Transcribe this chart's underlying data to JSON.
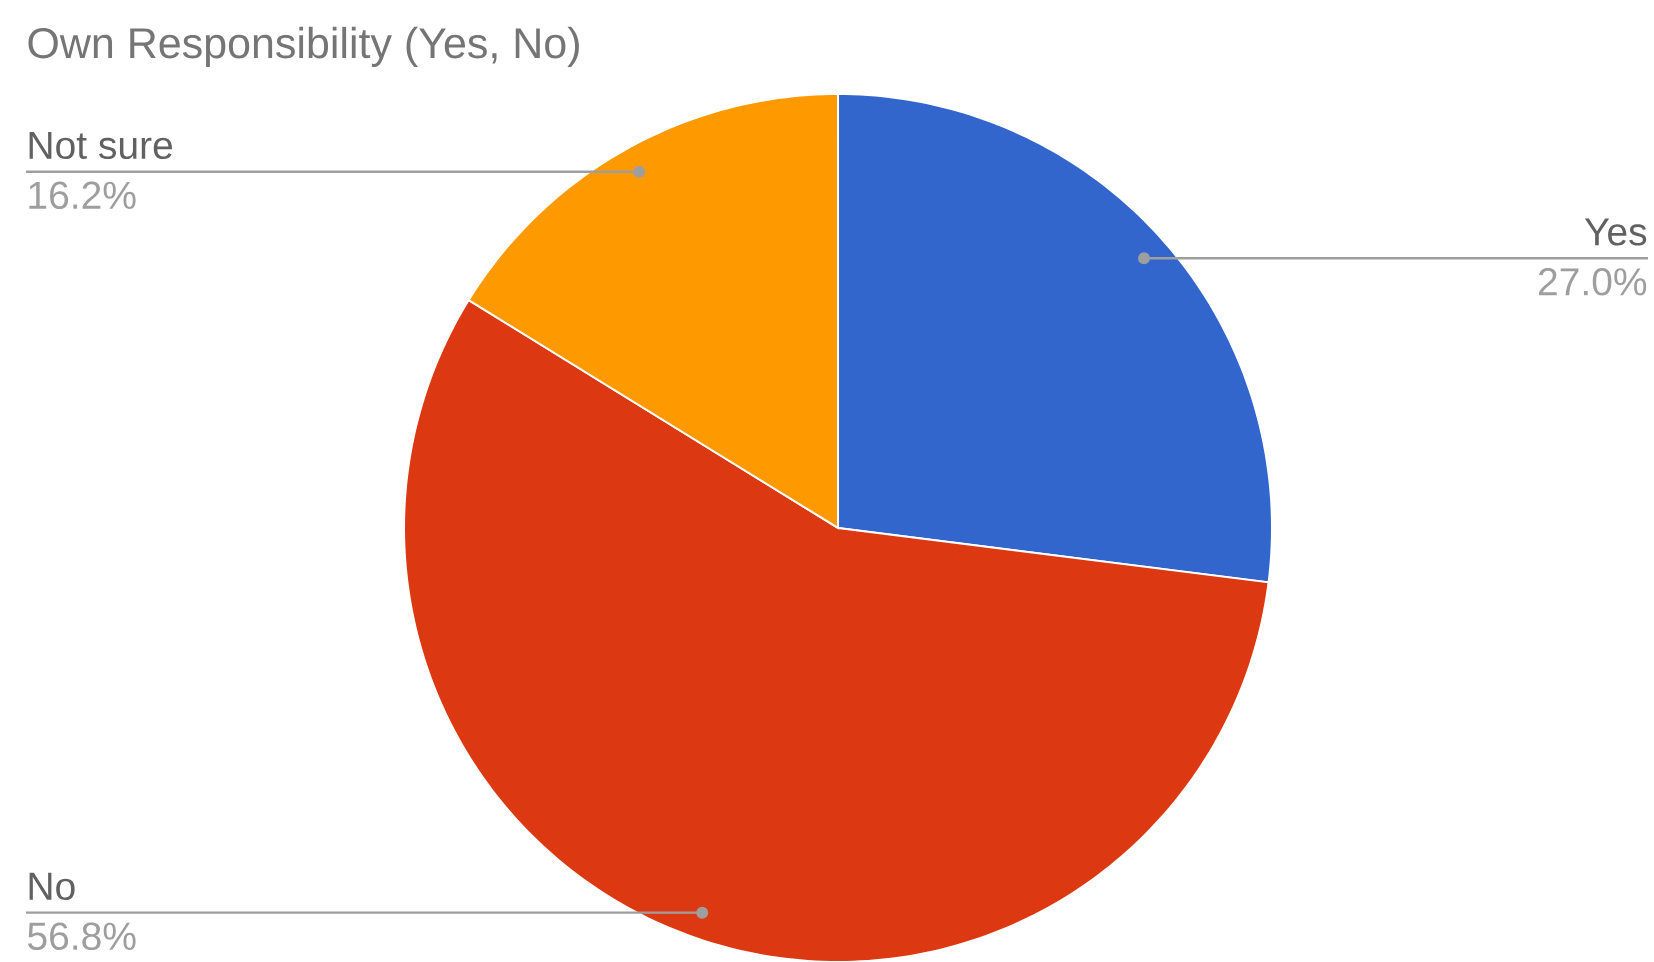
{
  "chart_data": {
    "type": "pie",
    "title": "Own Responsibility (Yes, No)",
    "categories": [
      "Yes",
      "No",
      "Not sure"
    ],
    "values": [
      27.0,
      56.8,
      16.2
    ],
    "colors": [
      "#3366cc",
      "#dc3912",
      "#ff9900"
    ],
    "value_labels": [
      "27.0%",
      "56.8%",
      "16.2%"
    ]
  }
}
